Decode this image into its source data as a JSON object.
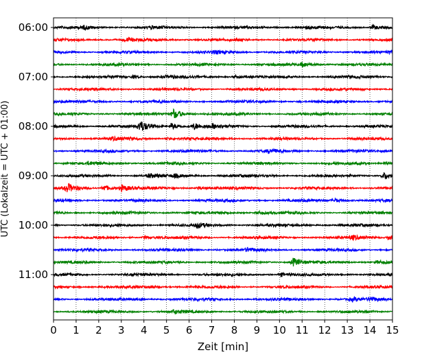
{
  "chart_data": {
    "type": "line",
    "title": "",
    "xlabel": "Zeit  [min]",
    "ylabel": "UTC (Lokalzeit = UTC + 01:00)",
    "xlim": [
      0,
      15
    ],
    "x_ticks": [
      "0",
      "1",
      "2",
      "3",
      "4",
      "5",
      "6",
      "7",
      "8",
      "9",
      "10",
      "11",
      "12",
      "13",
      "14",
      "15"
    ],
    "y_tick_labels": [
      "06:00",
      "07:00",
      "08:00",
      "09:00",
      "10:00",
      "11:00"
    ],
    "y_tick_rows": [
      0,
      4,
      8,
      12,
      16,
      20
    ],
    "grid_x": true,
    "grid_style": "dotted",
    "row_interval_min": 15,
    "colors": [
      "#000000",
      "#ff0000",
      "#0000ff",
      "#008000"
    ],
    "series": [
      {
        "start": "06:00",
        "color": "#000000",
        "events": [
          {
            "t": 1.3,
            "amp": 0.5
          },
          {
            "t": 4.3,
            "amp": 0.3
          },
          {
            "t": 11.1,
            "amp": 0.4
          },
          {
            "t": 14.1,
            "amp": 0.7
          }
        ]
      },
      {
        "start": "06:15",
        "color": "#ff0000",
        "events": [
          {
            "t": 3.2,
            "amp": 0.5
          }
        ]
      },
      {
        "start": "06:30",
        "color": "#0000ff",
        "events": [
          {
            "t": 7.0,
            "amp": 0.4
          },
          {
            "t": 14.9,
            "amp": 0.4
          }
        ]
      },
      {
        "start": "06:45",
        "color": "#008000",
        "events": [
          {
            "t": 11.0,
            "amp": 0.7
          }
        ]
      },
      {
        "start": "07:00",
        "color": "#000000",
        "events": [
          {
            "t": 3.5,
            "amp": 0.4
          },
          {
            "t": 4.9,
            "amp": 0.4
          },
          {
            "t": 8.0,
            "amp": 0.5
          }
        ]
      },
      {
        "start": "07:15",
        "color": "#ff0000",
        "events": []
      },
      {
        "start": "07:30",
        "color": "#0000ff",
        "events": []
      },
      {
        "start": "07:45",
        "color": "#008000",
        "events": [
          {
            "t": 5.3,
            "amp": 1.6
          }
        ]
      },
      {
        "start": "08:00",
        "color": "#000000",
        "events": [
          {
            "t": 3.8,
            "amp": 1.8
          },
          {
            "t": 5.2,
            "amp": 1.0
          },
          {
            "t": 6.2,
            "amp": 1.0
          },
          {
            "t": 7.0,
            "amp": 0.6
          }
        ]
      },
      {
        "start": "08:15",
        "color": "#ff0000",
        "events": [
          {
            "t": 2.6,
            "amp": 0.4
          },
          {
            "t": 5.0,
            "amp": 0.3
          }
        ]
      },
      {
        "start": "08:30",
        "color": "#0000ff",
        "events": [
          {
            "t": 9.5,
            "amp": 0.5
          }
        ]
      },
      {
        "start": "08:45",
        "color": "#008000",
        "events": [
          {
            "t": 1.5,
            "amp": 0.3
          },
          {
            "t": 14.6,
            "amp": 0.5
          }
        ]
      },
      {
        "start": "09:00",
        "color": "#000000",
        "events": [
          {
            "t": 4.2,
            "amp": 0.6
          },
          {
            "t": 5.3,
            "amp": 0.5
          },
          {
            "t": 14.6,
            "amp": 1.2
          }
        ]
      },
      {
        "start": "09:15",
        "color": "#ff0000",
        "events": [
          {
            "t": 0.6,
            "amp": 1.3
          },
          {
            "t": 2.2,
            "amp": 1.0
          },
          {
            "t": 3.0,
            "amp": 1.0
          },
          {
            "t": 6.4,
            "amp": 0.5
          }
        ]
      },
      {
        "start": "09:30",
        "color": "#0000ff",
        "events": [
          {
            "t": 12.4,
            "amp": 0.6
          }
        ]
      },
      {
        "start": "09:45",
        "color": "#008000",
        "events": [
          {
            "t": 9.0,
            "amp": 0.5
          }
        ]
      },
      {
        "start": "10:00",
        "color": "#000000",
        "events": [
          {
            "t": 6.3,
            "amp": 0.8
          }
        ]
      },
      {
        "start": "10:15",
        "color": "#ff0000",
        "events": [
          {
            "t": 4.0,
            "amp": 0.5
          },
          {
            "t": 13.2,
            "amp": 0.6
          },
          {
            "t": 14.8,
            "amp": 0.7
          }
        ]
      },
      {
        "start": "10:30",
        "color": "#0000ff",
        "events": [
          {
            "t": 8.5,
            "amp": 0.5
          }
        ]
      },
      {
        "start": "10:45",
        "color": "#008000",
        "events": [
          {
            "t": 10.6,
            "amp": 1.3
          },
          {
            "t": 14.3,
            "amp": 0.5
          }
        ]
      },
      {
        "start": "11:00",
        "color": "#000000",
        "events": [
          {
            "t": 10.0,
            "amp": 0.6
          }
        ]
      },
      {
        "start": "11:15",
        "color": "#ff0000",
        "events": [
          {
            "t": 4.3,
            "amp": 0.4
          }
        ]
      },
      {
        "start": "11:30",
        "color": "#0000ff",
        "events": [
          {
            "t": 13.2,
            "amp": 0.5
          },
          {
            "t": 14.0,
            "amp": 0.5
          }
        ]
      },
      {
        "start": "11:45",
        "color": "#008000",
        "events": [
          {
            "t": 5.3,
            "amp": 0.5
          }
        ]
      }
    ]
  }
}
